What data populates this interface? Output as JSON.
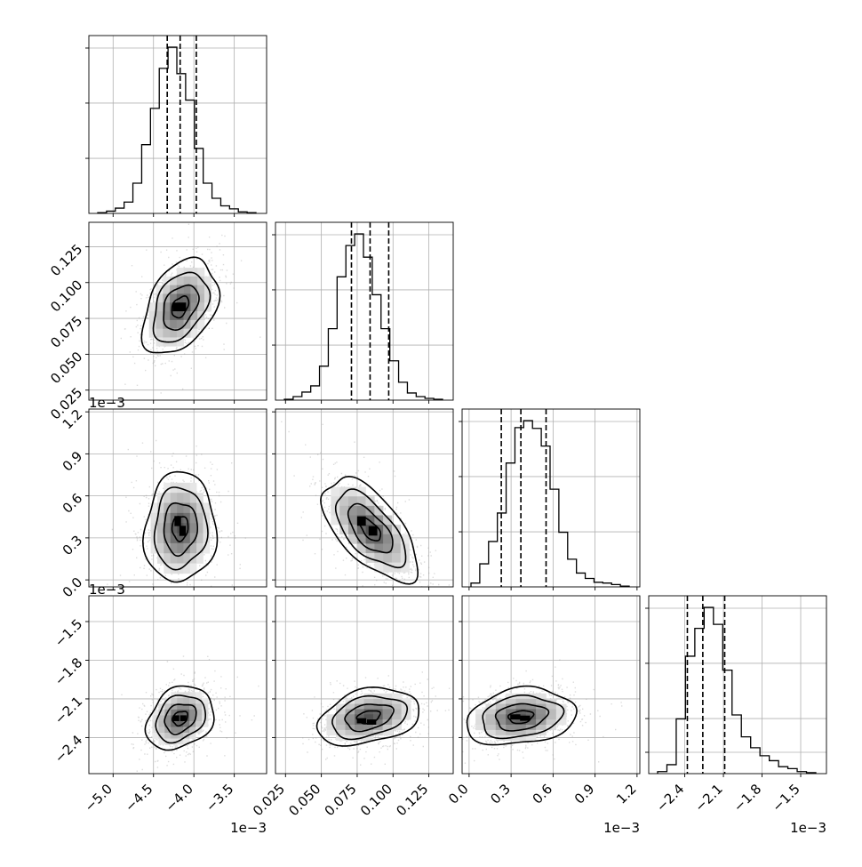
{
  "chart_data": {
    "type": "corner",
    "grid": true,
    "params": [
      {
        "index": 0,
        "axis_range": [
          -5.3,
          -3.1
        ],
        "ticks": [
          -5.0,
          -4.5,
          -4.0,
          -3.5
        ],
        "tick_labels": [
          "−5.0",
          "−4.5",
          "−4.0",
          "−3.5"
        ],
        "offset_label": "1e−3",
        "quantiles": [
          -4.33,
          -4.17,
          -3.97
        ],
        "histogram": [
          1,
          3,
          7,
          15,
          40,
          91,
          139,
          192,
          220,
          185,
          150,
          86,
          40,
          20,
          10,
          6,
          2,
          1
        ]
      },
      {
        "index": 1,
        "axis_range": [
          0.018,
          0.142
        ],
        "ticks": [
          0.025,
          0.05,
          0.075,
          0.1,
          0.125
        ],
        "tick_labels": [
          "0.025",
          "0.050",
          "0.075",
          "0.100",
          "0.125"
        ],
        "offset_label": "",
        "quantiles": [
          0.071,
          0.084,
          0.097
        ],
        "histogram": [
          1,
          4,
          9,
          16,
          38,
          80,
          138,
          173,
          186,
          160,
          118,
          80,
          44,
          20,
          8,
          4,
          2,
          1
        ]
      },
      {
        "index": 2,
        "axis_range": [
          -0.05,
          1.22
        ],
        "ticks": [
          0.0,
          0.3,
          0.6,
          0.9,
          1.2
        ],
        "tick_labels": [
          "0.0",
          "0.3",
          "0.6",
          "0.9",
          "1.2"
        ],
        "offset_label": "1e−3",
        "quantiles": [
          0.23,
          0.37,
          0.55
        ],
        "histogram": [
          5,
          30,
          59,
          96,
          161,
          207,
          216,
          206,
          183,
          127,
          71,
          36,
          18,
          11,
          6,
          5,
          3,
          1
        ]
      },
      {
        "index": 3,
        "axis_range": [
          -2.68,
          -1.3
        ],
        "ticks": [
          -2.4,
          -2.1,
          -1.8,
          -1.5
        ],
        "tick_labels": [
          "−2.4",
          "−2.1",
          "−1.8",
          "−1.5"
        ],
        "offset_label": "1e−3",
        "quantiles": [
          -2.38,
          -2.26,
          -2.09
        ],
        "histogram": [
          2,
          9,
          55,
          118,
          146,
          167,
          150,
          104,
          59,
          37,
          26,
          18,
          13,
          7,
          5,
          2,
          1
        ]
      }
    ],
    "pairs": [
      {
        "x": 0,
        "y": 1,
        "center": [
          -4.17,
          0.083
        ],
        "sigma": [
          0.19,
          0.0135
        ],
        "rho": 0.38,
        "peak_cells": [
          [
            -4.22,
            0.083
          ],
          [
            -4.14,
            0.083
          ]
        ]
      },
      {
        "x": 0,
        "y": 2,
        "center": [
          -4.17,
          0.37
        ],
        "sigma": [
          0.18,
          0.16
        ],
        "rho": 0.05,
        "peak_cells": [
          [
            -4.2,
            0.42
          ],
          [
            -4.14,
            0.35
          ]
        ]
      },
      {
        "x": 1,
        "y": 2,
        "center": [
          0.084,
          0.36
        ],
        "sigma": [
          0.0135,
          0.15
        ],
        "rho": -0.62,
        "peak_cells": [
          [
            0.078,
            0.42
          ],
          [
            0.086,
            0.35
          ]
        ]
      },
      {
        "x": 0,
        "y": 3,
        "center": [
          -4.17,
          -2.25
        ],
        "sigma": [
          0.17,
          0.1
        ],
        "rho": 0.25,
        "peak_cells": [
          [
            -4.22,
            -2.25
          ],
          [
            -4.13,
            -2.25
          ]
        ]
      },
      {
        "x": 1,
        "y": 3,
        "center": [
          0.083,
          -2.24
        ],
        "sigma": [
          0.0145,
          0.09
        ],
        "rho": 0.3,
        "peak_cells": [
          [
            0.078,
            -2.27
          ],
          [
            0.085,
            -2.28
          ]
        ]
      },
      {
        "x": 2,
        "y": 3,
        "center": [
          0.37,
          -2.24
        ],
        "sigma": [
          0.16,
          0.09
        ],
        "rho": 0.2,
        "peak_cells": [
          [
            0.33,
            -2.24
          ],
          [
            0.4,
            -2.25
          ]
        ]
      }
    ]
  }
}
